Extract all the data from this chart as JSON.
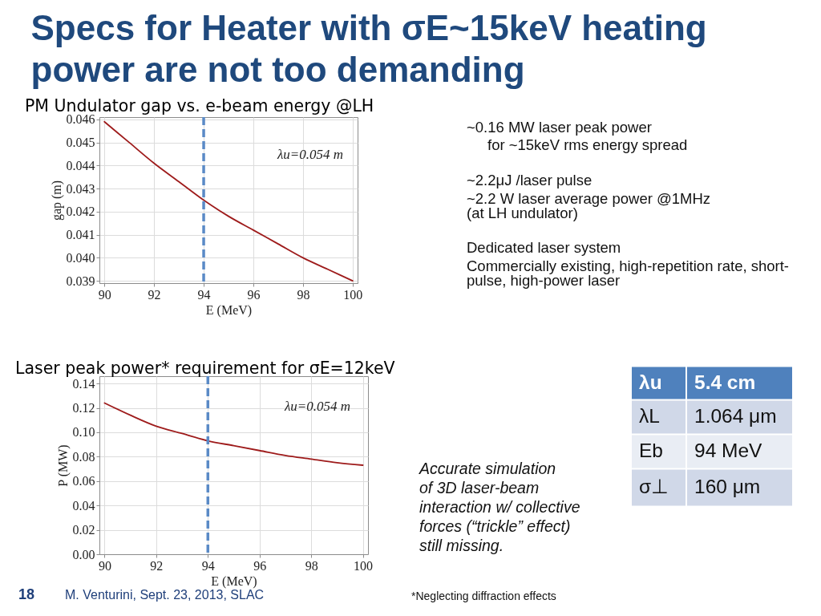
{
  "chart_data": [
    {
      "type": "line",
      "title": "PM Undulator gap vs. e-beam energy @LH",
      "xlabel": "E (MeV)",
      "ylabel": "gap (m)",
      "x": [
        90,
        91,
        92,
        93,
        94,
        95,
        96,
        97,
        98,
        99,
        100
      ],
      "series": [
        {
          "color": "#9e1b1b",
          "values": [
            0.0459,
            0.045,
            0.0441,
            0.0433,
            0.0425,
            0.0418,
            0.0412,
            0.0406,
            0.04,
            0.0395,
            0.039
          ]
        }
      ],
      "xlim": [
        89.8,
        100.2
      ],
      "ylim": [
        0.0389,
        0.0461
      ],
      "xticks": [
        90,
        92,
        94,
        96,
        98,
        100
      ],
      "yticks": [
        0.039,
        {
          "value": 0.04,
          "label": "0.040"
        },
        0.041,
        0.042,
        0.043,
        0.044,
        0.045,
        0.046
      ],
      "grid": true,
      "annotations": [
        "λu=0.054 m"
      ],
      "ref_lines": [
        {
          "axis": "x",
          "value": 94,
          "color": "#5a8ac6",
          "line_style": "dashed"
        }
      ]
    },
    {
      "type": "line",
      "title": "Laser peak power* requirement for σE=12keV",
      "xlabel": "E (MeV)",
      "ylabel": "P (MW)",
      "x": [
        90,
        91,
        92,
        93,
        94,
        95,
        96,
        97,
        98,
        99,
        100
      ],
      "series": [
        {
          "color": "#9e1b1b",
          "values": [
            0.124,
            0.114,
            0.105,
            0.099,
            0.093,
            0.089,
            0.085,
            0.081,
            0.078,
            0.075,
            0.073
          ]
        }
      ],
      "xlim": [
        89.8,
        100.2
      ],
      "ylim": [
        0,
        0.146
      ],
      "xticks": [
        90,
        92,
        94,
        96,
        98,
        100
      ],
      "yticks": [
        {
          "value": 0,
          "label": "0.00"
        },
        0.02,
        0.04,
        0.06,
        0.08,
        {
          "value": 0.1,
          "label": "0.10"
        },
        0.12,
        0.14
      ],
      "grid": true,
      "annotations": [
        "λu=0.054 m"
      ],
      "ref_lines": [
        {
          "axis": "x",
          "value": 94,
          "color": "#5a8ac6",
          "line_style": "dashed"
        }
      ]
    },
    {
      "type": "other",
      "title": "Specs for Heater with σE~15keV heating\npower are not too demanding",
      "annotations": [
        "~0.16 MW laser peak power",
        "for ~15keV rms energy spread",
        "~2.2μJ /laser pulse",
        "~2.2 W  laser average power @1MHz\n(at LH undulator)",
        "Dedicated laser system",
        "Commercially existing, high-repetition rate, short-\npulse, high-power laser",
        "λu",
        "5.4 cm",
        "λL",
        "1.064 μm",
        "Eb",
        "94 MeV",
        "σ⊥",
        "160 μm",
        "Accurate simulation\nof 3D laser-beam\ninteraction w/ collective\nforces (“trickle” effect)\nstill missing.",
        "*Neglecting diffraction effects",
        "18",
        "M. Venturini, Sept. 23, 2013, SLAC"
      ]
    }
  ]
}
